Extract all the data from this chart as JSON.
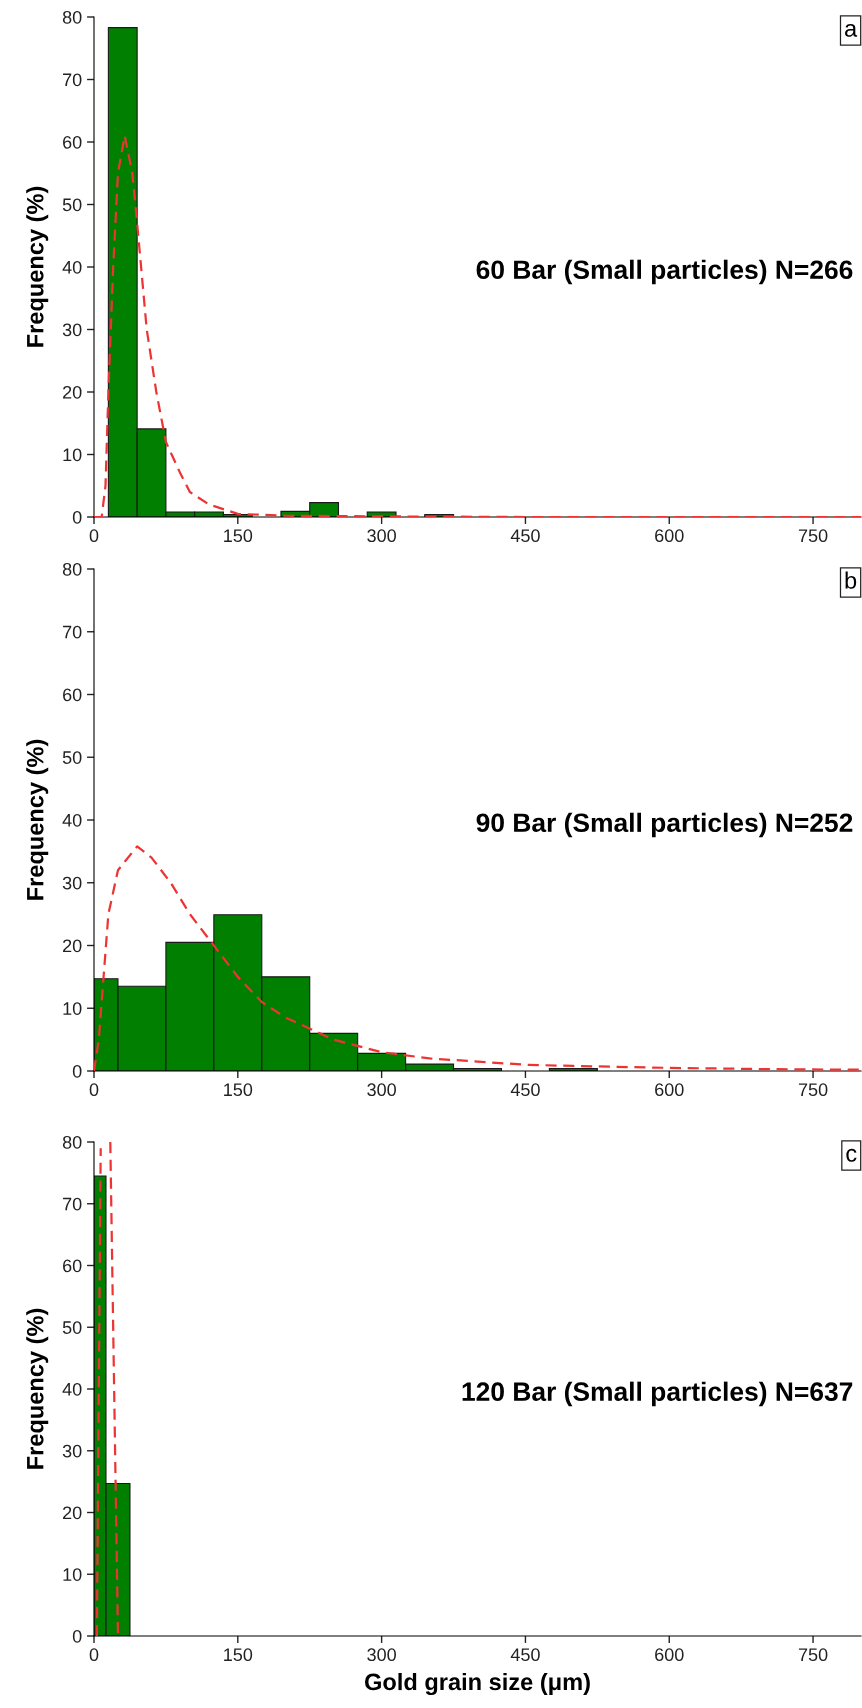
{
  "chart_data": [
    {
      "type": "histogram",
      "color": "#007f00",
      "bins": [
        15,
        45,
        75,
        105,
        135,
        165,
        195,
        225,
        255,
        285,
        315,
        345,
        375
      ],
      "values": [
        78.3,
        14.1,
        0.8,
        0.8,
        0.4,
        null,
        0.9,
        2.3,
        null,
        0.8,
        0,
        0.4
      ],
      "ylabel": "Frequency (%)",
      "annotations": [
        "a",
        "60 Bar (Small particles) N=266"
      ],
      "xlim": [
        0,
        800
      ],
      "ylim": [
        0,
        80
      ],
      "xticks": [
        0,
        150,
        300,
        450,
        600,
        750
      ],
      "yticks": [
        0,
        10,
        20,
        30,
        40,
        50,
        60,
        70,
        80
      ],
      "grid": false,
      "series": [
        {
          "type": "line",
          "color": "#ee3333",
          "line_style": "dashed",
          "x": [
            0,
            8,
            12,
            15,
            20,
            25,
            32,
            40,
            45,
            55,
            65,
            75,
            90,
            100,
            120,
            150,
            200,
            300,
            450,
            800
          ],
          "values": [
            0,
            0,
            5,
            20,
            40,
            55,
            61,
            55,
            47,
            30,
            20,
            12,
            7,
            4,
            2,
            0.5,
            0.2,
            0.1,
            0,
            0
          ]
        }
      ]
    },
    {
      "type": "histogram",
      "color": "#007f00",
      "bins": [
        0,
        25,
        75,
        125,
        175,
        225,
        275,
        325,
        375,
        425,
        475,
        525
      ],
      "values": [
        14.7,
        13.5,
        20.5,
        24.9,
        15.0,
        6.0,
        2.8,
        1.1,
        0.4,
        0,
        0.4
      ],
      "ylabel": "Frequency (%)",
      "annotations": [
        "b",
        "90 Bar (Small particles) N=252"
      ],
      "xlim": [
        0,
        800
      ],
      "ylim": [
        0,
        80
      ],
      "xticks": [
        0,
        150,
        300,
        450,
        600,
        750
      ],
      "yticks": [
        0,
        10,
        20,
        30,
        40,
        50,
        60,
        70,
        80
      ],
      "grid": false,
      "series": [
        {
          "type": "line",
          "color": "#ee3333",
          "line_style": "dashed",
          "x": [
            0,
            5,
            10,
            15,
            25,
            45,
            60,
            80,
            100,
            125,
            150,
            175,
            200,
            250,
            300,
            350,
            400,
            450,
            500,
            600,
            700,
            800
          ],
          "values": [
            0,
            5,
            15,
            25,
            32,
            35.8,
            34,
            30,
            25,
            20,
            15,
            11,
            8.5,
            5,
            3,
            2,
            1.5,
            1,
            0.8,
            0.5,
            0.3,
            0.2
          ]
        }
      ]
    },
    {
      "type": "histogram",
      "color": "#007f00",
      "bins": [
        0,
        12.5,
        37.5
      ],
      "values": [
        74.5,
        24.7
      ],
      "xlabel": "Gold grain size (μm)",
      "ylabel": "Frequency (%)",
      "annotations": [
        "c",
        "120 Bar (Small particles) N=637"
      ],
      "xlim": [
        0,
        800
      ],
      "ylim": [
        0,
        80
      ],
      "xticks": [
        0,
        150,
        300,
        450,
        600,
        750
      ],
      "yticks": [
        0,
        10,
        20,
        30,
        40,
        50,
        60,
        70,
        80
      ],
      "grid": false,
      "series": [
        {
          "type": "line",
          "color": "#ee3333",
          "line_style": "dashed",
          "x": [
            3,
            5,
            7,
            12,
            17,
            21,
            25
          ],
          "values": [
            0,
            40,
            79,
            null,
            80,
            40,
            0
          ]
        }
      ]
    }
  ]
}
